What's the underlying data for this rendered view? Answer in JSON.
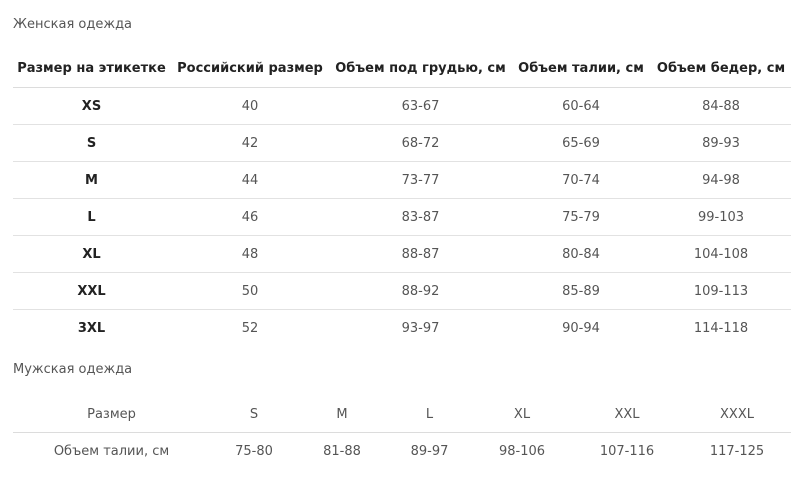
{
  "women": {
    "title": "Женская одежда",
    "headers": [
      "Размер на этикетке",
      "Российский размер",
      "Объем под грудью, см",
      "Объем талии, см",
      "Объем бедер, см"
    ],
    "rows": [
      [
        "XS",
        "40",
        "63-67",
        "60-64",
        "84-88"
      ],
      [
        "S",
        "42",
        "68-72",
        "65-69",
        "89-93"
      ],
      [
        "M",
        "44",
        "73-77",
        "70-74",
        "94-98"
      ],
      [
        "L",
        "46",
        "83-87",
        "75-79",
        "99-103"
      ],
      [
        "XL",
        "48",
        "88-87",
        "80-84",
        "104-108"
      ],
      [
        "XXL",
        "50",
        "88-92",
        "85-89",
        "109-113"
      ],
      [
        "3XL",
        "52",
        "93-97",
        "90-94",
        "114-118"
      ]
    ]
  },
  "men": {
    "title": "Мужская одежда",
    "header_row": [
      "Размер",
      "S",
      "M",
      "L",
      "XL",
      "XXL",
      "XXXL"
    ],
    "data_row": [
      "Объем талии, см",
      "75-80",
      "81-88",
      "89-97",
      "98-106",
      "107-116",
      "117-125"
    ]
  }
}
